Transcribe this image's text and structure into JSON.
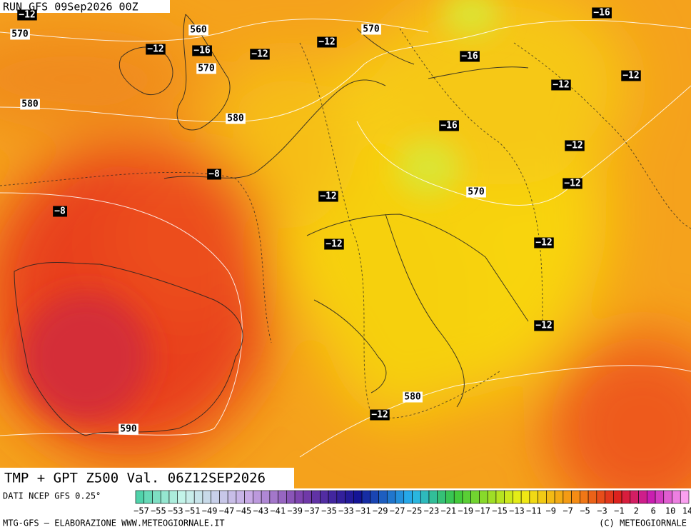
{
  "header": {
    "run": "RUN GFS 09Sep2026 00Z"
  },
  "map": {
    "isotherm_labels": [
      "−12",
      "−12",
      "−16",
      "−12",
      "−12",
      "−16",
      "−16",
      "−12",
      "−12",
      "−16",
      "−12",
      "−8",
      "−12",
      "−12",
      "−8",
      "−12",
      "−12",
      "−12",
      "−12"
    ],
    "height_labels": [
      "570",
      "560",
      "570",
      "570",
      "580",
      "580",
      "570",
      "580",
      "590"
    ]
  },
  "title": "TMP + GPT Z500 Val. 06Z12SEP2026",
  "legend": {
    "source": "DATI NCEP GFS 0.25°",
    "labels": [
      "−57",
      "−55",
      "−53",
      "−51",
      "−49",
      "−47",
      "−45",
      "−43",
      "−41",
      "−39",
      "−37",
      "−35",
      "−33",
      "−31",
      "−29",
      "−27",
      "−25",
      "−23",
      "−21",
      "−19",
      "−17",
      "−15",
      "−13",
      "−11",
      "−9",
      "−7",
      "−5",
      "−3",
      "−1",
      "2",
      "6",
      "10",
      "14"
    ]
  },
  "footer": {
    "left": "MTG-GFS — ELABORAZIONE WWW.METEOGIORNALE.IT",
    "right": "(C) METEOGIORNALE"
  }
}
